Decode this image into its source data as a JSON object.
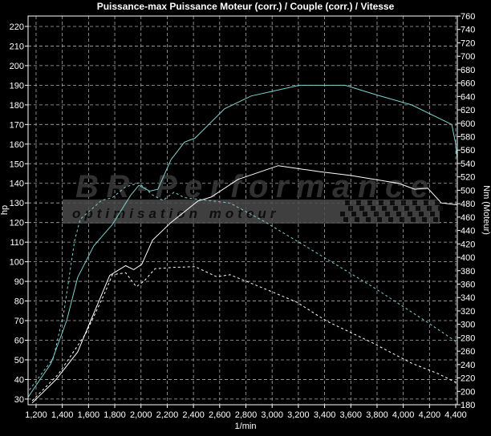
{
  "chart_data": {
    "type": "line",
    "title": "Puissance-max Puissance Moteur (corr.) / Couple (corr.) / Vitesse",
    "xlabel": "1/min",
    "ylabel_left": "hp",
    "ylabel_right": "Nm (Moteur)",
    "xlim": [
      1139,
      4412
    ],
    "ylim_left": [
      27.1,
      225.3
    ],
    "ylim_right": [
      180,
      760
    ],
    "x_ticks": [
      1200,
      1400,
      1600,
      1800,
      2000,
      2200,
      2400,
      2600,
      2800,
      3000,
      3200,
      3400,
      3600,
      3800,
      4000,
      4200,
      4400
    ],
    "x_tick_labels": [
      "1,200",
      "1,400",
      "1,600",
      "1,800",
      "2,000",
      "2,200",
      "2,400",
      "2,600",
      "2,800",
      "3,000",
      "3,200",
      "3,400",
      "3,600",
      "3,800",
      "4,000",
      "4,200",
      "4,400"
    ],
    "y_left_ticks": [
      30,
      40,
      50,
      60,
      70,
      80,
      90,
      100,
      110,
      120,
      130,
      140,
      150,
      160,
      170,
      180,
      190,
      200,
      210,
      220
    ],
    "y_right_ticks": [
      180,
      200,
      220,
      240,
      260,
      280,
      300,
      320,
      340,
      360,
      380,
      400,
      420,
      440,
      460,
      480,
      500,
      520,
      540,
      560,
      580,
      600,
      620,
      640,
      660,
      680,
      700,
      720,
      740,
      760
    ],
    "grid": true,
    "background": "#000000",
    "series": [
      {
        "axis": "left",
        "color": "#7fd0d0",
        "style": "solid",
        "points": [
          [
            1139,
            31
          ],
          [
            1312,
            48
          ],
          [
            1433,
            70
          ],
          [
            1517,
            92
          ],
          [
            1639,
            108
          ],
          [
            1782,
            119
          ],
          [
            1922,
            134
          ],
          [
            1984,
            139
          ],
          [
            2067,
            136
          ],
          [
            2129,
            137
          ],
          [
            2228,
            152
          ],
          [
            2332,
            161
          ],
          [
            2412,
            163
          ],
          [
            2638,
            178
          ],
          [
            2840,
            184.5
          ],
          [
            3006,
            187
          ],
          [
            3208,
            190
          ],
          [
            3556,
            190
          ],
          [
            3801,
            185
          ],
          [
            4064,
            180
          ],
          [
            4370,
            170
          ],
          [
            4400,
            160
          ],
          [
            4412,
            152
          ]
        ]
      },
      {
        "axis": "left",
        "color": "#ffffff",
        "style": "solid",
        "points": [
          [
            1170,
            28
          ],
          [
            1353,
            40
          ],
          [
            1517,
            54
          ],
          [
            1617,
            70
          ],
          [
            1761,
            93
          ],
          [
            1883,
            98
          ],
          [
            1945,
            96
          ],
          [
            2006,
            98.7
          ],
          [
            2088,
            111
          ],
          [
            2228,
            120
          ],
          [
            2434,
            131
          ],
          [
            2535,
            133
          ],
          [
            2740,
            142
          ],
          [
            3047,
            149
          ],
          [
            3353,
            146
          ],
          [
            3597,
            144
          ],
          [
            3965,
            140
          ],
          [
            4087,
            137
          ],
          [
            4187,
            137.5
          ],
          [
            4290,
            130
          ],
          [
            4412,
            129
          ]
        ]
      },
      {
        "axis": "right",
        "color": "#7fd0d0",
        "style": "dashed",
        "points": [
          [
            1149,
            202
          ],
          [
            1333,
            250
          ],
          [
            1414,
            321
          ],
          [
            1494,
            425
          ],
          [
            1537,
            457
          ],
          [
            1700,
            485
          ],
          [
            1782,
            489
          ],
          [
            1883,
            505
          ],
          [
            1984,
            511
          ],
          [
            2088,
            493
          ],
          [
            2168,
            485
          ],
          [
            2252,
            497
          ],
          [
            2332,
            489
          ],
          [
            2679,
            481
          ],
          [
            2944,
            453
          ],
          [
            3353,
            405
          ],
          [
            3758,
            357
          ],
          [
            4169,
            305
          ],
          [
            4412,
            273
          ]
        ]
      },
      {
        "axis": "right",
        "color": "#ffffff",
        "style": "dashed",
        "points": [
          [
            1170,
            186
          ],
          [
            1372,
            226
          ],
          [
            1578,
            286
          ],
          [
            1720,
            345
          ],
          [
            1782,
            374
          ],
          [
            1883,
            377
          ],
          [
            1965,
            356
          ],
          [
            2026,
            365
          ],
          [
            2107,
            383
          ],
          [
            2251,
            385
          ],
          [
            2412,
            386
          ],
          [
            2577,
            371
          ],
          [
            2679,
            374
          ],
          [
            2944,
            353
          ],
          [
            3189,
            333
          ],
          [
            3414,
            305
          ],
          [
            3758,
            273
          ],
          [
            4064,
            242
          ],
          [
            4270,
            226
          ],
          [
            4412,
            212
          ]
        ]
      }
    ]
  },
  "watermark": {
    "brand": "BR-Performance",
    "tagline": "optimisation moteur"
  }
}
